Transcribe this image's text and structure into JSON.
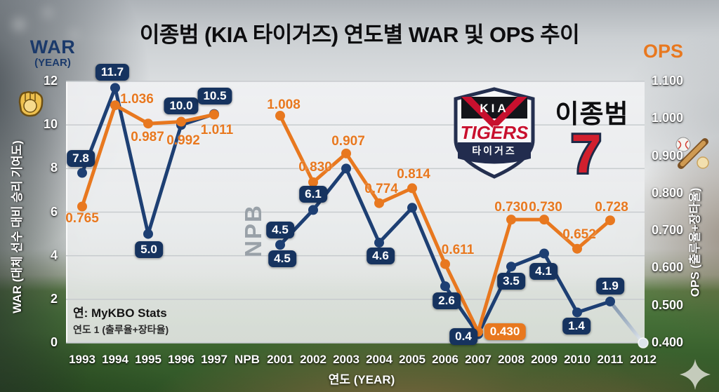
{
  "title": "이종범 (KIA 타이거즈) 연도별 WAR 및 OPS 추이",
  "header": {
    "war": "WAR",
    "war_sub": "(YEAR)",
    "ops": "OPS"
  },
  "player": {
    "name": "이종범",
    "number": "7"
  },
  "logo": {
    "kia": "KIA",
    "tigers": "TIGERS",
    "korean": "타이거즈"
  },
  "source": {
    "line1": "연: MyKBO Stats",
    "line2": "연도 1 (출루율+장타율)"
  },
  "colors": {
    "war_navy": "#16335f",
    "ops_orange": "#e8781f",
    "fade_gray": "#dde4ec"
  },
  "chart_data": {
    "type": "line",
    "title": "이종범 (KIA 타이거즈) 연도별 WAR 및 OPS 추이",
    "categories": [
      "1993",
      "1994",
      "1995",
      "1996",
      "1997",
      "NPB",
      "2001",
      "2002",
      "2003",
      "2004",
      "2005",
      "2006",
      "2007",
      "2008",
      "2009",
      "2010",
      "2011",
      "2012"
    ],
    "x_axis_title": "연도 (YEAR)",
    "gap_label": "NPB",
    "grid": true,
    "legend_position": "axis-headers",
    "left_axis": {
      "label": "WAR (대체 선수 대비 승리 기여도)",
      "min": 0,
      "max": 12,
      "tick_step": 2,
      "ticks": [
        "12",
        "10",
        "8",
        "6",
        "4",
        "2",
        "0"
      ]
    },
    "right_axis": {
      "label": "OPS (출루율+장타율)",
      "min": 0.4,
      "max": 1.1,
      "tick_step": 0.1,
      "ticks": [
        "1.100",
        "1.000",
        "0.900",
        "0.800",
        "0.700",
        "0.600",
        "0.500",
        "0.400"
      ]
    },
    "series": [
      {
        "name": "WAR",
        "axis": "left",
        "color": "#1d3f73",
        "label_style": "box-navy",
        "points": [
          {
            "x": "1993",
            "y": 7.8,
            "label": "7.8",
            "dx": -2,
            "dy": -21
          },
          {
            "x": "1994",
            "y": 11.7,
            "label": "11.7",
            "dx": -4,
            "dy": -22
          },
          {
            "x": "1995",
            "y": 5.0,
            "label": "5.0",
            "dx": 1,
            "dy": 22
          },
          {
            "x": "1996",
            "y": 10.0,
            "label": "10.0",
            "dx": 0,
            "dy": -27
          },
          {
            "x": "1997",
            "y": 10.5,
            "label": "10.5",
            "dx": 1,
            "dy": -26
          },
          {
            "x": "2001",
            "y": 4.5,
            "label": "4.5",
            "dx": 0,
            "dy": -21,
            "label2": "4.5",
            "dx2": 3,
            "dy2": 20
          },
          {
            "x": "2002",
            "y": 6.1,
            "label": "6.1",
            "dx": 0,
            "dy": -22
          },
          {
            "x": "2003",
            "y": 8.0
          },
          {
            "x": "2004",
            "y": 4.6,
            "label": "4.6",
            "dx": 2,
            "dy": 19
          },
          {
            "x": "2005",
            "y": 6.2
          },
          {
            "x": "2006",
            "y": 2.6,
            "label": "2.6",
            "dx": 2,
            "dy": 21
          },
          {
            "x": "2007",
            "y": 0.4,
            "label": "0.4",
            "dx": -21,
            "dy": 3
          },
          {
            "x": "2008",
            "y": 3.5,
            "label": "3.5",
            "dx": 0,
            "dy": 21
          },
          {
            "x": "2009",
            "y": 4.1,
            "label": "4.1",
            "dx": -1,
            "dy": 25
          },
          {
            "x": "2010",
            "y": 1.4,
            "label": "1.4",
            "dx": -1,
            "dy": 20
          },
          {
            "x": "2011",
            "y": 1.9,
            "label": "1.9",
            "dx": 0,
            "dy": -22
          }
        ]
      },
      {
        "name": "OPS",
        "axis": "right",
        "color": "#e8781f",
        "label_style": "txt-orange",
        "points": [
          {
            "x": "1993",
            "y": 0.765,
            "label": "0.765",
            "dx": 0,
            "dy": 17
          },
          {
            "x": "1994",
            "y": 1.036,
            "label": "1.036",
            "dx": 31,
            "dy": -8
          },
          {
            "x": "1995",
            "y": 0.987,
            "label": "0.987",
            "dx": -1,
            "dy": 20
          },
          {
            "x": "1996",
            "y": 0.992,
            "label": "0.992",
            "dx": 3,
            "dy": 27
          },
          {
            "x": "1997",
            "y": 1.011,
            "label": "1.011",
            "dx": 4,
            "dy": 23
          },
          {
            "x": "2001",
            "y": 1.008,
            "label": "1.008",
            "dx": 5,
            "dy": -15
          },
          {
            "x": "2002",
            "y": 0.83,
            "label": "0.830",
            "dx": 3,
            "dy": -21
          },
          {
            "x": "2003",
            "y": 0.907,
            "label": "0.907",
            "dx": 3,
            "dy": -17
          },
          {
            "x": "2004",
            "y": 0.774,
            "label": "0.774",
            "dx": 3,
            "dy": -20
          },
          {
            "x": "2005",
            "y": 0.814,
            "label": "0.814",
            "dx": 2,
            "dy": -19
          },
          {
            "x": "2006",
            "y": 0.611,
            "label": "0.611",
            "dx": 18,
            "dy": -20
          },
          {
            "x": "2007",
            "y": 0.43,
            "label": "0.430",
            "dx": 38,
            "dy": 0,
            "boxed": true
          },
          {
            "x": "2008",
            "y": 0.73,
            "label": "0.730",
            "dx": 0,
            "dy": -17
          },
          {
            "x": "2009",
            "y": 0.73,
            "label": "0.730",
            "dx": 2,
            "dy": -17
          },
          {
            "x": "2010",
            "y": 0.652,
            "label": "0.652",
            "dx": 3,
            "dy": -20
          },
          {
            "x": "2011",
            "y": 0.728,
            "label": "0.728",
            "dx": 2,
            "dy": -18
          }
        ]
      }
    ],
    "fade_out": {
      "series": "WAR",
      "from_x": "2011",
      "from_y": 1.9,
      "to_x": "2012",
      "to_y": 0.0
    }
  }
}
